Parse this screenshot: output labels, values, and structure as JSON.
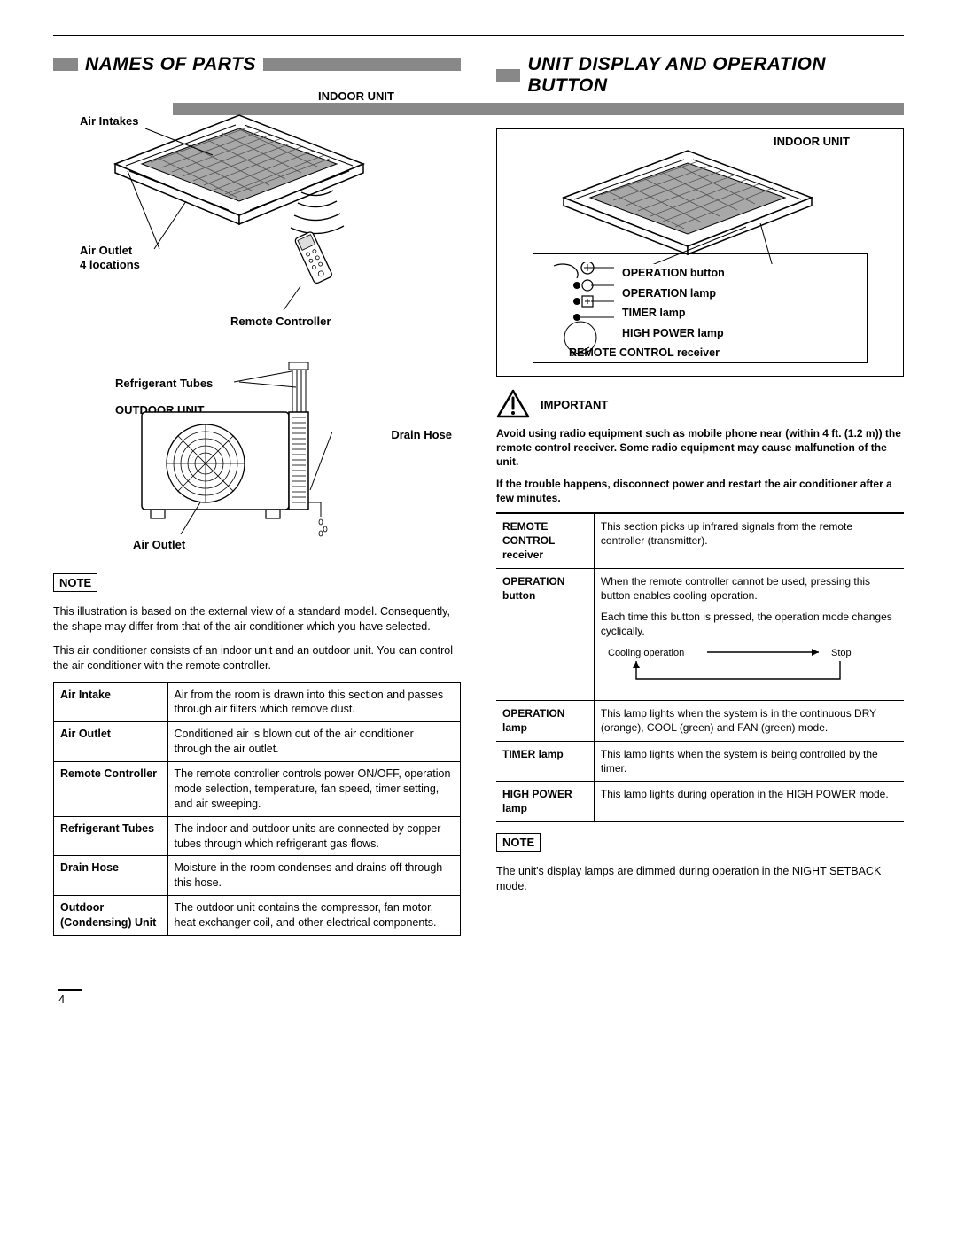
{
  "page_number": "4",
  "left": {
    "title": "NAMES OF PARTS",
    "fig1": {
      "indoor_unit": "INDOOR UNIT",
      "air_intakes": "Air Intakes",
      "air_outlet": "Air Outlet",
      "four_locations": "4 locations",
      "remote_controller": "Remote Controller"
    },
    "fig2": {
      "refrigerant_tubes": "Refrigerant Tubes",
      "outdoor_unit": "OUTDOOR UNIT",
      "drain_hose": "Drain Hose",
      "air_outlet": "Air Outlet"
    },
    "note_label": "NOTE",
    "note_p1": "This illustration is based on the external view of a standard model. Consequently, the shape may differ from that of the air conditioner which you have selected.",
    "note_p2": "This air conditioner consists of an indoor unit and an outdoor unit. You can control the air conditioner with the remote controller.",
    "table": [
      {
        "k": "Air Intake",
        "v": "Air from the room is drawn into this section and passes through air filters which remove dust."
      },
      {
        "k": "Air Outlet",
        "v": "Conditioned air is blown out of the air conditioner through the air outlet."
      },
      {
        "k": "Remote Controller",
        "v": "The remote controller controls power ON/OFF, operation mode selection, temperature, fan speed, timer setting, and air sweeping."
      },
      {
        "k": "Refrigerant Tubes",
        "v": "The indoor and outdoor units are connected by copper tubes through which refrigerant gas flows."
      },
      {
        "k": "Drain Hose",
        "v": "Moisture in the room condenses and drains off through this hose."
      },
      {
        "k": "Outdoor (Condensing) Unit",
        "v": "The outdoor unit contains the compressor, fan motor, heat exchanger coil, and other electrical components."
      }
    ]
  },
  "right": {
    "title": "UNIT DISPLAY AND OPERATION BUTTON",
    "indoor_unit": "INDOOR UNIT",
    "display_labels": {
      "operation_button": "OPERATION button",
      "operation_lamp": "OPERATION lamp",
      "timer_lamp": "TIMER lamp",
      "high_power_lamp": "HIGH POWER lamp",
      "remote_receiver": "REMOTE CONTROL receiver"
    },
    "important": "IMPORTANT",
    "important_p1": "Avoid using radio equipment such as mobile phone near (within 4 ft. (1.2 m)) the remote control receiver. Some radio equipment may cause malfunction of the unit.",
    "important_p2": "If the trouble happens, disconnect power and restart the air conditioner after a few minutes.",
    "ops_table": [
      {
        "k": "REMOTE CONTROL receiver",
        "v": "This section picks up infrared signals from the remote controller (transmitter)."
      },
      {
        "k": "OPERATION button",
        "v": "When the remote controller cannot be used, pressing this button enables cooling operation.",
        "extra": "Each time this button is pressed, the operation mode changes cyclically.",
        "cycle_left": "Cooling operation",
        "cycle_right": "Stop"
      },
      {
        "k": "OPERATION lamp",
        "v": "This lamp lights when the system is in the continuous DRY (orange), COOL (green) and FAN (green) mode."
      },
      {
        "k": "TIMER lamp",
        "v": "This lamp lights when the system is being controlled by the timer."
      },
      {
        "k": "HIGH POWER lamp",
        "v": "This lamp lights during operation in the HIGH POWER mode."
      }
    ],
    "note_label": "NOTE",
    "note_p": "The unit's display lamps are dimmed during operation in the NIGHT SETBACK mode."
  }
}
